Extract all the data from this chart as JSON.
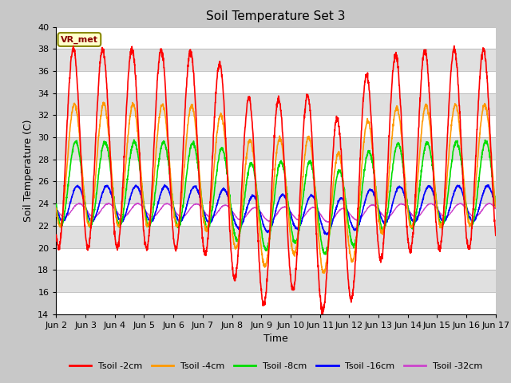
{
  "title": "Soil Temperature Set 3",
  "xlabel": "Time",
  "ylabel": "Soil Temperature (C)",
  "ylim": [
    14,
    40
  ],
  "yticks": [
    14,
    16,
    18,
    20,
    22,
    24,
    26,
    28,
    30,
    32,
    34,
    36,
    38,
    40
  ],
  "x_labels": [
    "Jun 2",
    "Jun 3",
    "Jun 4",
    "Jun 5",
    "Jun 6",
    "Jun 7",
    "Jun 8",
    "Jun 9",
    "Jun 10",
    "Jun 11",
    "Jun 12",
    "Jun 13",
    "Jun 14",
    "Jun 15",
    "Jun 16",
    "Jun 17"
  ],
  "n_days": 15,
  "colors": {
    "Tsoil -2cm": "#ff0000",
    "Tsoil -4cm": "#ff9900",
    "Tsoil -8cm": "#00dd00",
    "Tsoil -16cm": "#0000ff",
    "Tsoil -32cm": "#cc44cc"
  },
  "annotation_text": "VR_met",
  "band_colors": [
    "#ffffff",
    "#e0e0e0"
  ],
  "fig_bg": "#c8c8c8",
  "plot_bg": "#ffffff"
}
